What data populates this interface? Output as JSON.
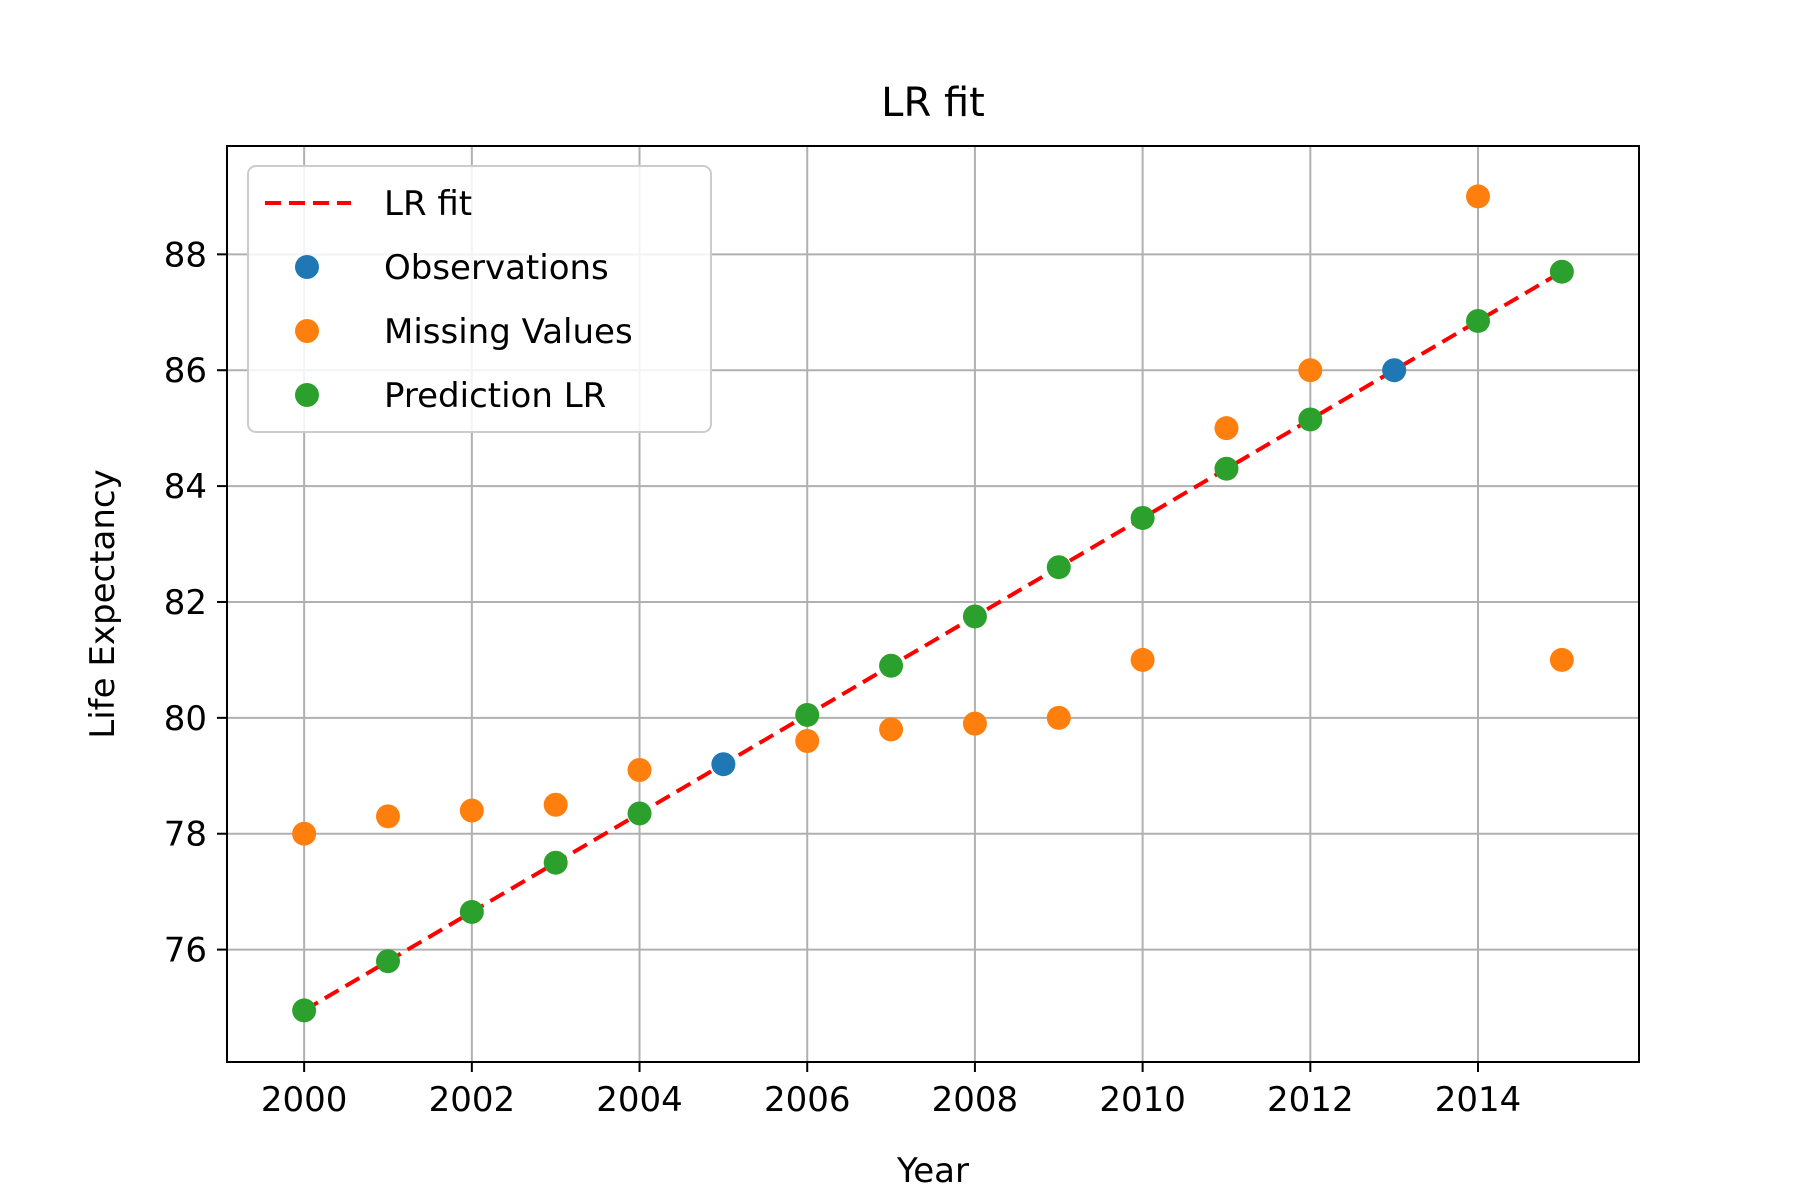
{
  "chart_data": {
    "type": "scatter",
    "title": "LR fit",
    "xlabel": "Year",
    "ylabel": "Life Expectancy",
    "xlim": [
      1999.08,
      2015.92
    ],
    "ylim": [
      74.06,
      89.87
    ],
    "grid": true,
    "legend_position": "top-left",
    "xticks": [
      2000,
      2002,
      2004,
      2006,
      2008,
      2010,
      2012,
      2014
    ],
    "yticks": [
      76,
      78,
      80,
      82,
      84,
      86,
      88
    ],
    "series": [
      {
        "name": "LR fit",
        "kind": "line",
        "style": "dashed",
        "color": "#ff0000",
        "x": [
          2000,
          2015
        ],
        "y": [
          74.95,
          87.7
        ]
      },
      {
        "name": "Observations",
        "kind": "scatter",
        "color": "#1f77b4",
        "x": [
          2005,
          2013
        ],
        "y": [
          79.2,
          86.0
        ]
      },
      {
        "name": "Missing Values",
        "kind": "scatter",
        "color": "#ff7f0e",
        "x": [
          2000,
          2001,
          2002,
          2003,
          2004,
          2006,
          2007,
          2008,
          2009,
          2010,
          2011,
          2012,
          2014,
          2015
        ],
        "y": [
          78.0,
          78.3,
          78.4,
          78.5,
          79.1,
          79.6,
          79.8,
          79.9,
          80.0,
          81.0,
          85.0,
          86.0,
          89.0,
          81.0
        ]
      },
      {
        "name": "Prediction LR",
        "kind": "scatter",
        "color": "#2ca02c",
        "x": [
          2000,
          2001,
          2002,
          2003,
          2004,
          2006,
          2007,
          2008,
          2009,
          2010,
          2011,
          2012,
          2014,
          2015
        ],
        "y": [
          74.95,
          75.8,
          76.65,
          77.5,
          78.35,
          80.05,
          80.9,
          81.75,
          82.6,
          83.45,
          84.3,
          85.15,
          86.85,
          87.7
        ]
      }
    ]
  }
}
